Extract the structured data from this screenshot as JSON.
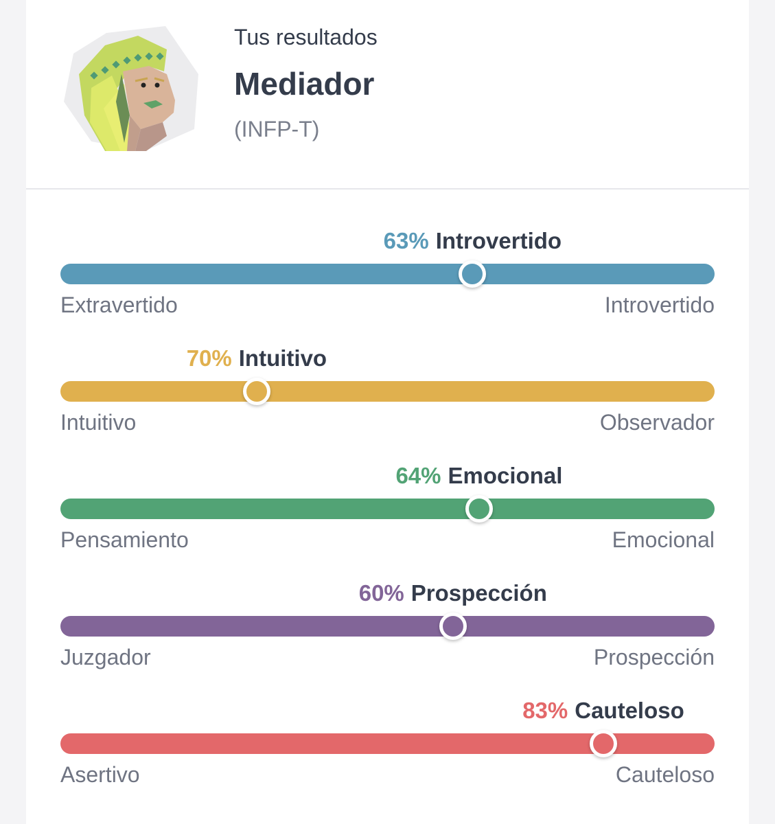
{
  "header": {
    "subtitle": "Tus resultados",
    "title": "Mediador",
    "code": "(INFP-T)"
  },
  "avatar": {
    "icon": "mediator-avatar-icon"
  },
  "traits": [
    {
      "pct": "63%",
      "name": "Introvertido",
      "left": "Extravertido",
      "right": "Introvertido",
      "position": 0.63,
      "color": "#5a9ab8"
    },
    {
      "pct": "70%",
      "name": "Intuitivo",
      "left": "Intuitivo",
      "right": "Observador",
      "position": 0.3,
      "color": "#e0b04e"
    },
    {
      "pct": "64%",
      "name": "Emocional",
      "left": "Pensamiento",
      "right": "Emocional",
      "position": 0.64,
      "color": "#52a375"
    },
    {
      "pct": "60%",
      "name": "Prospección",
      "left": "Juzgador",
      "right": "Prospección",
      "position": 0.6,
      "color": "#826598"
    },
    {
      "pct": "83%",
      "name": "Cauteloso",
      "left": "Asertivo",
      "right": "Cauteloso",
      "position": 0.83,
      "color": "#e3686a"
    }
  ]
}
